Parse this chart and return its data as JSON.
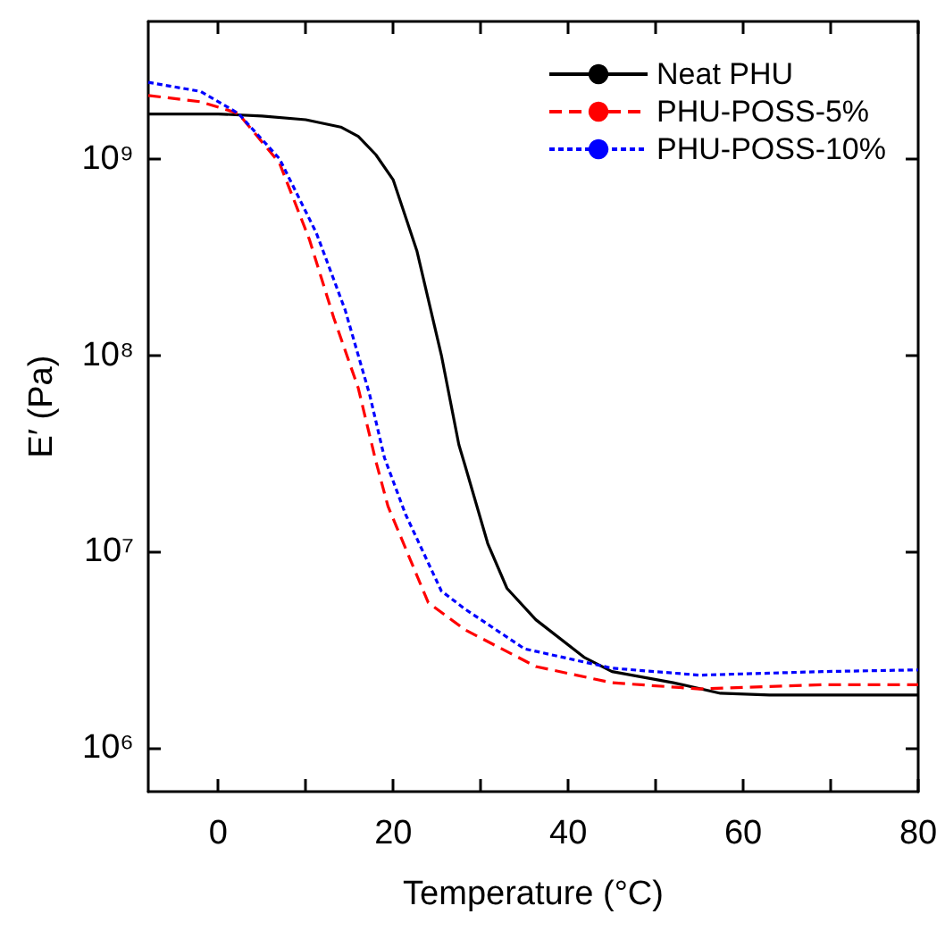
{
  "chart_data": {
    "type": "line",
    "xlabel": "Temperature (°C)",
    "ylabel": "E′ (Pa)",
    "xlim": [
      -8,
      80
    ],
    "xticks": [
      0,
      {
        "value": 10,
        "label": null
      },
      20,
      {
        "value": 30,
        "label": null
      },
      40,
      {
        "value": 50,
        "label": null
      },
      60,
      {
        "value": 70,
        "label": null
      },
      80
    ],
    "ylim": [
      600000,
      5000000000
    ],
    "log": true,
    "yticks": [
      {
        "value": 1000000,
        "label": "10⁶"
      },
      {
        "value": 10000000,
        "label": "10⁷"
      },
      {
        "value": 100000000,
        "label": "10⁸"
      },
      {
        "value": 1000000000,
        "label": "10⁹"
      }
    ],
    "grid": false,
    "legend": "top right",
    "marker": "none",
    "series": [
      {
        "name": "Neat PHU",
        "color": "#000000",
        "line_style": "solid",
        "x": [
          -8,
          0,
          5,
          10,
          14,
          16,
          18,
          20,
          22.7,
          25.5,
          27.5,
          28.2,
          30.8,
          33,
          36.3,
          41.8,
          45,
          52,
          57.4,
          63,
          70,
          80
        ],
        "values": [
          1690000000.0,
          1690000000.0,
          1650000000.0,
          1580000000.0,
          1450000000.0,
          1300000000.0,
          1050000000.0,
          780000000.0,
          340000000.0,
          100000000.0,
          35000000.0,
          27500000.0,
          11000000.0,
          6500000.0,
          4500000.0,
          2900000.0,
          2450000.0,
          2150000.0,
          1900000.0,
          1860000.0,
          1860000.0,
          1860000.0
        ]
      },
      {
        "name": "PHU-POSS-5%",
        "color": "#ff0000",
        "line_style": "dashed",
        "x": [
          -8,
          -2,
          2.3,
          7,
          10.4,
          13.2,
          16,
          18,
          19.4,
          24,
          28.2,
          36.3,
          45,
          55,
          69,
          80
        ],
        "values": [
          2100000000.0,
          1950000000.0,
          1700000000.0,
          950000000.0,
          390000000.0,
          155000000.0,
          68000000.0,
          29000000.0,
          17000000.0,
          5500000.0,
          4000000.0,
          2600000.0,
          2150000.0,
          2000000.0,
          2100000.0,
          2100000.0
        ]
      },
      {
        "name": "PHU-POSS-10%",
        "color": "#0000ff",
        "line_style": "dotted",
        "x": [
          -8,
          -2,
          2.3,
          7,
          11.2,
          14.5,
          17.3,
          19,
          21.4,
          25.5,
          28.2,
          35,
          45,
          55,
          69,
          80
        ],
        "values": [
          2450000000.0,
          2200000000.0,
          1700000000.0,
          1000000000.0,
          420000000.0,
          170000000.0,
          63000000.0,
          30000000.0,
          15500000.0,
          6300000.0,
          5100000.0,
          3200000.0,
          2550000.0,
          2350000.0,
          2450000.0,
          2500000.0
        ]
      }
    ]
  }
}
